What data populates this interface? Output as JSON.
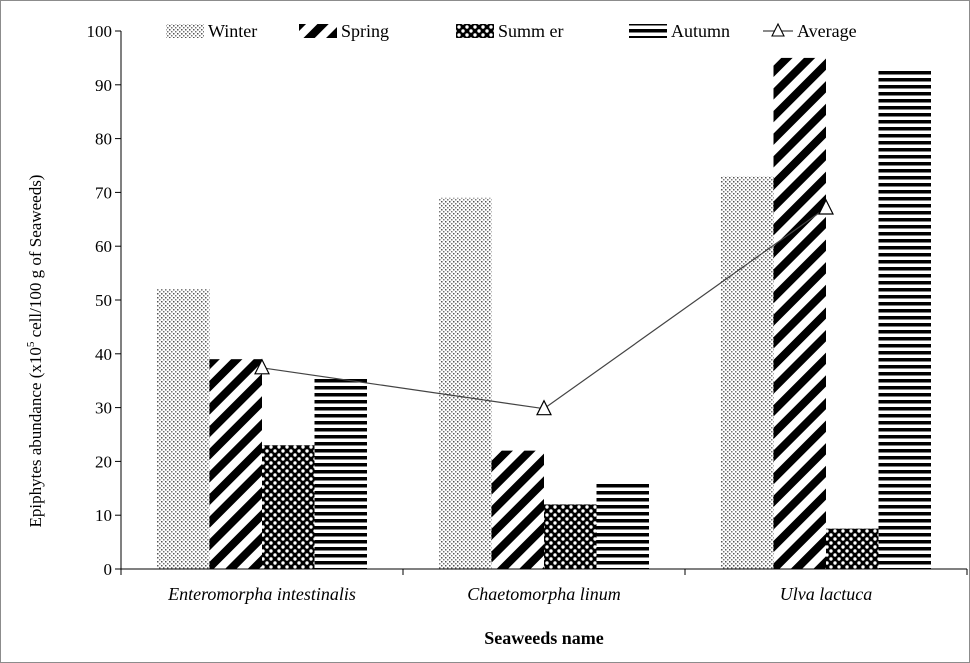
{
  "chart_data": {
    "type": "bar",
    "categories": [
      "Enteromorpha intestinalis",
      "Chaetomorpha linum",
      "Ulva lactuca"
    ],
    "series": [
      {
        "name": "Winter",
        "values": [
          52,
          69,
          73
        ],
        "pattern": "dots"
      },
      {
        "name": "Spring",
        "values": [
          39,
          22,
          95
        ],
        "pattern": "diagonal"
      },
      {
        "name": "Summ er",
        "values": [
          23,
          12,
          7.5
        ],
        "pattern": "checker"
      },
      {
        "name": "Autumn",
        "values": [
          35.5,
          16,
          93
        ],
        "pattern": "horizontal"
      }
    ],
    "line_series": {
      "name": "Average",
      "type": "line",
      "marker": "triangle",
      "values": [
        37.4,
        29.8,
        67.1
      ]
    },
    "xlabel": "Seaweeds name",
    "ylabel": {
      "pre": "Epiphytes abundance (x10",
      "sup": "5",
      "post": " cell/100  g of Seaweeds)"
    },
    "ylim": [
      0,
      100
    ],
    "yticks": [
      0,
      10,
      20,
      30,
      40,
      50,
      60,
      70,
      80,
      90,
      100
    ],
    "grid": false,
    "legend": "top"
  }
}
